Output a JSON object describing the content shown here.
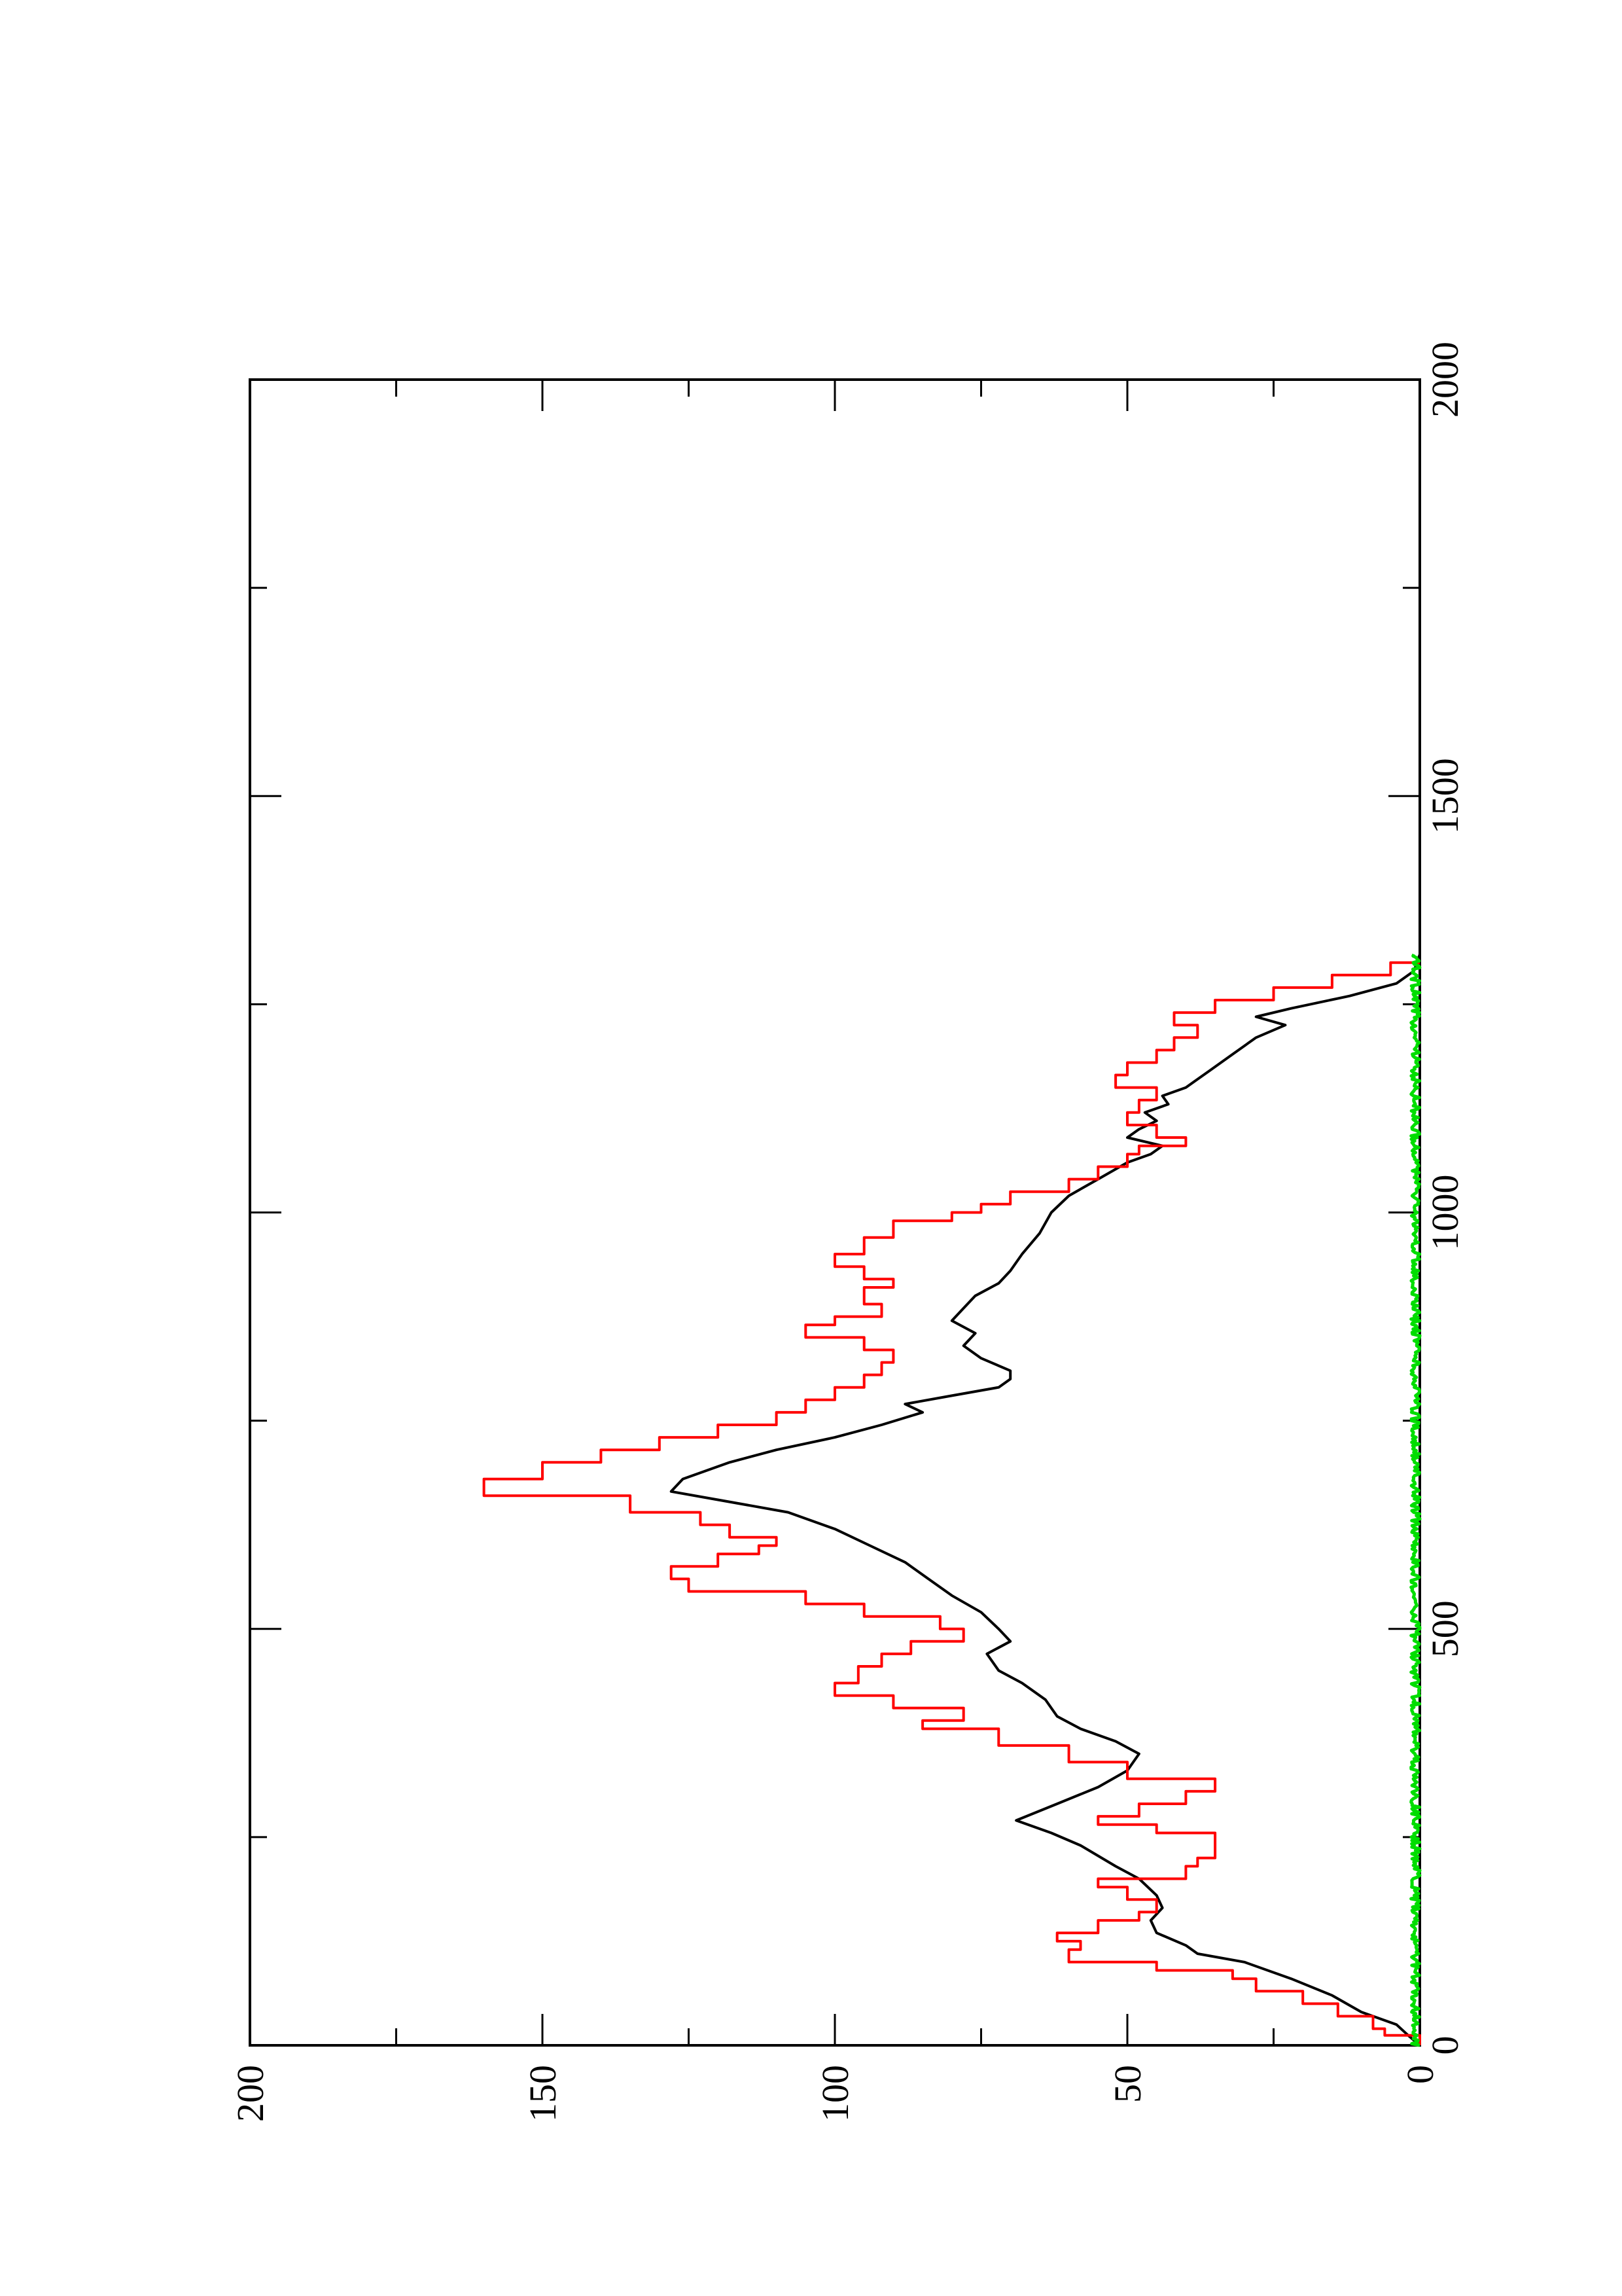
{
  "chart_data": {
    "type": "line",
    "orientation": "rotated 90 degrees counter-clockwise (x axis runs bottom-to-top along the right edge, y axis runs right-to-left along the bottom edge)",
    "title": "",
    "xlabel": "",
    "ylabel": "",
    "xlim": [
      0,
      2000
    ],
    "ylim": [
      0,
      200
    ],
    "x_ticks": [
      "0",
      "500",
      "1000",
      "1500",
      "2000"
    ],
    "y_ticks": [
      "0",
      "50",
      "100",
      "150",
      "200"
    ],
    "grid": false,
    "legend": "none",
    "series": [
      {
        "color": "#000000",
        "points": [
          [
            0,
            0
          ],
          [
            12,
            2
          ],
          [
            25,
            4
          ],
          [
            40,
            10
          ],
          [
            60,
            15
          ],
          [
            80,
            22
          ],
          [
            100,
            30
          ],
          [
            110,
            38
          ],
          [
            120,
            40
          ],
          [
            135,
            45
          ],
          [
            150,
            46
          ],
          [
            165,
            44
          ],
          [
            180,
            45
          ],
          [
            200,
            48
          ],
          [
            215,
            52
          ],
          [
            240,
            58
          ],
          [
            255,
            63
          ],
          [
            270,
            69
          ],
          [
            290,
            62
          ],
          [
            310,
            55
          ],
          [
            330,
            50
          ],
          [
            350,
            48
          ],
          [
            365,
            52
          ],
          [
            380,
            58
          ],
          [
            395,
            62
          ],
          [
            415,
            64
          ],
          [
            435,
            68
          ],
          [
            450,
            72
          ],
          [
            470,
            74
          ],
          [
            485,
            70
          ],
          [
            500,
            72
          ],
          [
            520,
            75
          ],
          [
            540,
            80
          ],
          [
            560,
            84
          ],
          [
            580,
            88
          ],
          [
            600,
            94
          ],
          [
            620,
            100
          ],
          [
            640,
            108
          ],
          [
            655,
            120
          ],
          [
            665,
            128
          ],
          [
            680,
            126
          ],
          [
            700,
            118
          ],
          [
            715,
            110
          ],
          [
            730,
            100
          ],
          [
            745,
            92
          ],
          [
            760,
            85
          ],
          [
            770,
            88
          ],
          [
            780,
            80
          ],
          [
            790,
            72
          ],
          [
            800,
            70
          ],
          [
            810,
            70
          ],
          [
            825,
            75
          ],
          [
            840,
            78
          ],
          [
            855,
            76
          ],
          [
            870,
            80
          ],
          [
            885,
            78
          ],
          [
            900,
            76
          ],
          [
            915,
            72
          ],
          [
            930,
            70
          ],
          [
            950,
            68
          ],
          [
            975,
            65
          ],
          [
            1000,
            63
          ],
          [
            1020,
            60
          ],
          [
            1040,
            55
          ],
          [
            1060,
            50
          ],
          [
            1070,
            46
          ],
          [
            1080,
            44
          ],
          [
            1090,
            50
          ],
          [
            1100,
            48
          ],
          [
            1110,
            45
          ],
          [
            1120,
            47
          ],
          [
            1130,
            43
          ],
          [
            1140,
            44
          ],
          [
            1150,
            40
          ],
          [
            1170,
            36
          ],
          [
            1190,
            32
          ],
          [
            1210,
            28
          ],
          [
            1225,
            23
          ],
          [
            1235,
            28
          ],
          [
            1245,
            22
          ],
          [
            1260,
            12
          ],
          [
            1275,
            4
          ],
          [
            1290,
            1
          ],
          [
            1310,
            0
          ]
        ]
      },
      {
        "color": "#ff0000",
        "points": [
          [
            0,
            0
          ],
          [
            12,
            6
          ],
          [
            20,
            8
          ],
          [
            35,
            14
          ],
          [
            50,
            20
          ],
          [
            65,
            28
          ],
          [
            80,
            32
          ],
          [
            90,
            45
          ],
          [
            100,
            60
          ],
          [
            115,
            58
          ],
          [
            125,
            62
          ],
          [
            135,
            55
          ],
          [
            150,
            48
          ],
          [
            160,
            45
          ],
          [
            175,
            50
          ],
          [
            190,
            55
          ],
          [
            200,
            40
          ],
          [
            215,
            38
          ],
          [
            225,
            35
          ],
          [
            240,
            35
          ],
          [
            255,
            45
          ],
          [
            265,
            55
          ],
          [
            275,
            48
          ],
          [
            290,
            40
          ],
          [
            305,
            35
          ],
          [
            320,
            50
          ],
          [
            340,
            60
          ],
          [
            360,
            72
          ],
          [
            380,
            85
          ],
          [
            390,
            78
          ],
          [
            405,
            90
          ],
          [
            420,
            100
          ],
          [
            435,
            96
          ],
          [
            455,
            92
          ],
          [
            470,
            87
          ],
          [
            485,
            78
          ],
          [
            500,
            82
          ],
          [
            515,
            95
          ],
          [
            530,
            105
          ],
          [
            545,
            125
          ],
          [
            560,
            128
          ],
          [
            575,
            120
          ],
          [
            590,
            113
          ],
          [
            600,
            110
          ],
          [
            610,
            118
          ],
          [
            625,
            123
          ],
          [
            640,
            135
          ],
          [
            660,
            160
          ],
          [
            680,
            150
          ],
          [
            700,
            140
          ],
          [
            715,
            130
          ],
          [
            730,
            120
          ],
          [
            745,
            110
          ],
          [
            760,
            105
          ],
          [
            775,
            100
          ],
          [
            790,
            95
          ],
          [
            805,
            92
          ],
          [
            820,
            90
          ],
          [
            835,
            95
          ],
          [
            850,
            105
          ],
          [
            865,
            100
          ],
          [
            875,
            92
          ],
          [
            890,
            95
          ],
          [
            910,
            90
          ],
          [
            920,
            95
          ],
          [
            935,
            100
          ],
          [
            950,
            95
          ],
          [
            970,
            90
          ],
          [
            990,
            80
          ],
          [
            1000,
            75
          ],
          [
            1010,
            70
          ],
          [
            1025,
            60
          ],
          [
            1040,
            55
          ],
          [
            1055,
            50
          ],
          [
            1070,
            48
          ],
          [
            1080,
            40
          ],
          [
            1090,
            45
          ],
          [
            1105,
            50
          ],
          [
            1120,
            48
          ],
          [
            1135,
            45
          ],
          [
            1150,
            52
          ],
          [
            1165,
            50
          ],
          [
            1180,
            45
          ],
          [
            1195,
            42
          ],
          [
            1210,
            38
          ],
          [
            1225,
            42
          ],
          [
            1240,
            35
          ],
          [
            1255,
            25
          ],
          [
            1270,
            15
          ],
          [
            1285,
            5
          ],
          [
            1300,
            0
          ]
        ]
      },
      {
        "color": "#00dd00",
        "points": [
          [
            0,
            0
          ],
          [
            1310,
            0
          ]
        ],
        "noise_amplitude": 1.5
      }
    ]
  }
}
